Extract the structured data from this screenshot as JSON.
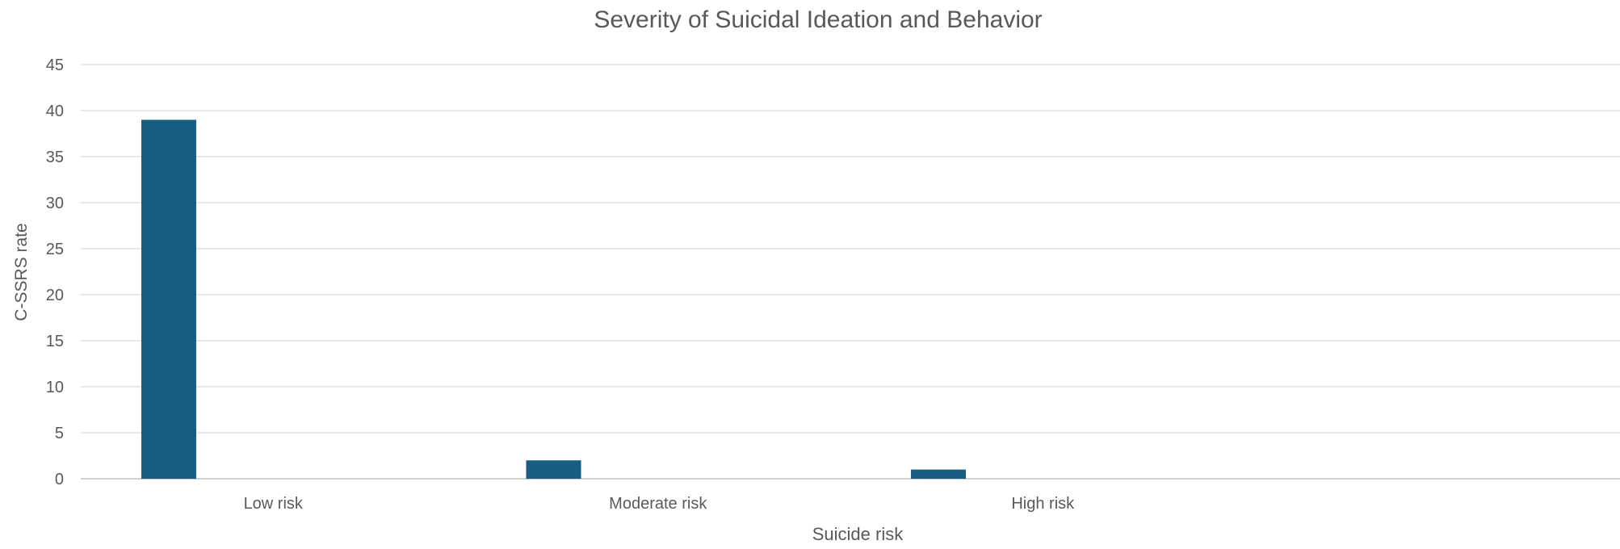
{
  "chart_data": {
    "type": "bar",
    "title": "Severity of Suicidal Ideation and Behavior",
    "xlabel": "Suicide risk",
    "ylabel": "C-SSRS rate",
    "categories": [
      "Low risk",
      "Moderate risk",
      "High risk",
      ""
    ],
    "series": [
      {
        "values": [
          39,
          2,
          1,
          null
        ]
      },
      {
        "values": [
          null,
          null,
          null,
          null
        ]
      }
    ],
    "ylim": [
      0,
      45
    ],
    "yticks": [
      0,
      5,
      10,
      15,
      20,
      25,
      30,
      35,
      40,
      45
    ],
    "grid": true,
    "legend": "none",
    "colors": {
      "bar": "#175E82",
      "grid": "#D9D9D9",
      "axis": "#BFBFBF",
      "text": "#595959"
    }
  }
}
